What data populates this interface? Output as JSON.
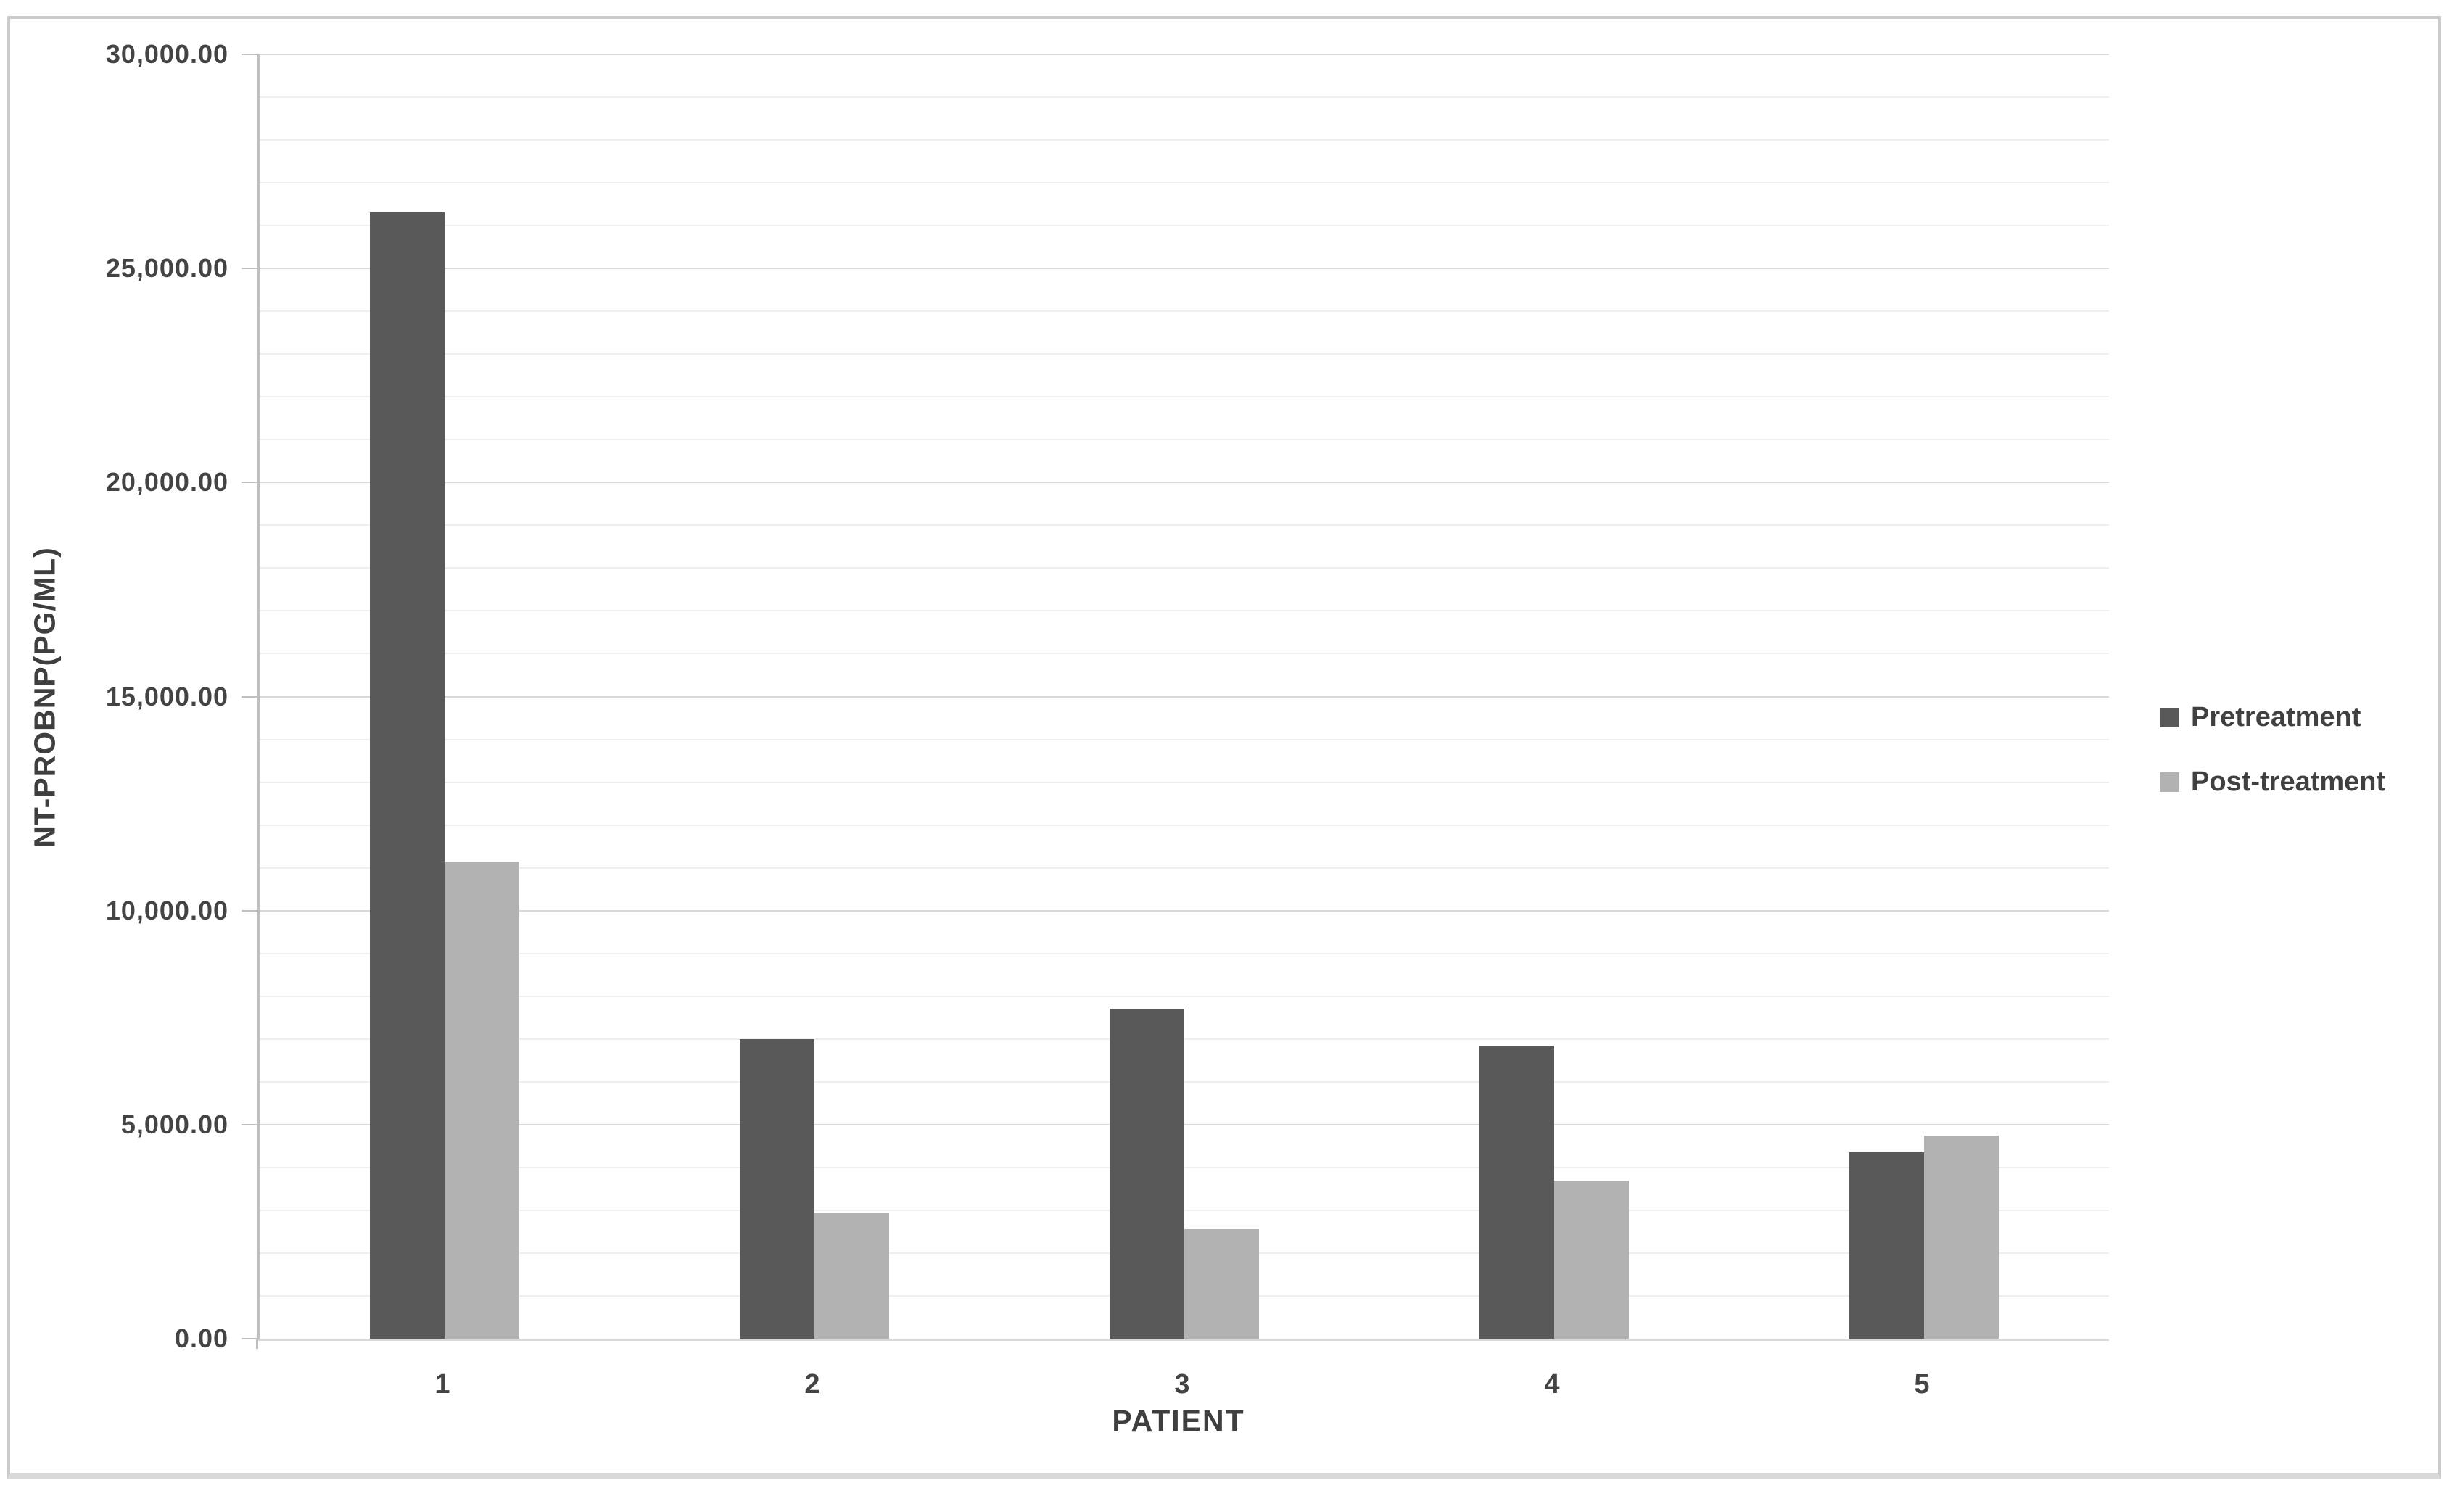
{
  "chart_data": {
    "type": "bar",
    "title": "",
    "categories": [
      "1",
      "2",
      "3",
      "4",
      "5"
    ],
    "series": [
      {
        "name": "Pretreatment",
        "color": "#595959",
        "values": [
          26300,
          7000,
          7700,
          6850,
          4350
        ]
      },
      {
        "name": "Post-treatment",
        "color": "#b2b2b2",
        "values": [
          11150,
          2950,
          2550,
          3700,
          4750
        ]
      }
    ],
    "xlabel": "PATIENT",
    "ylabel": "NT-PROBNP(PG/ML)",
    "ylim": [
      0,
      30000
    ],
    "y_major_step": 5000,
    "y_minor_step": 1000,
    "y_tick_labels": [
      "0.00",
      "5,000.00",
      "10,000.00",
      "15,000.00",
      "20,000.00",
      "25,000.00",
      "30,000.00"
    ],
    "grid": true,
    "legend_position": "right",
    "colors": {
      "axis_line": "#bfbfbf",
      "baseline": "#d9d9d9",
      "major_gridline": "#d8d8d8",
      "minor_gridline": "#efefef",
      "text": "#404040",
      "frame_border": "#cbcbcb"
    }
  }
}
